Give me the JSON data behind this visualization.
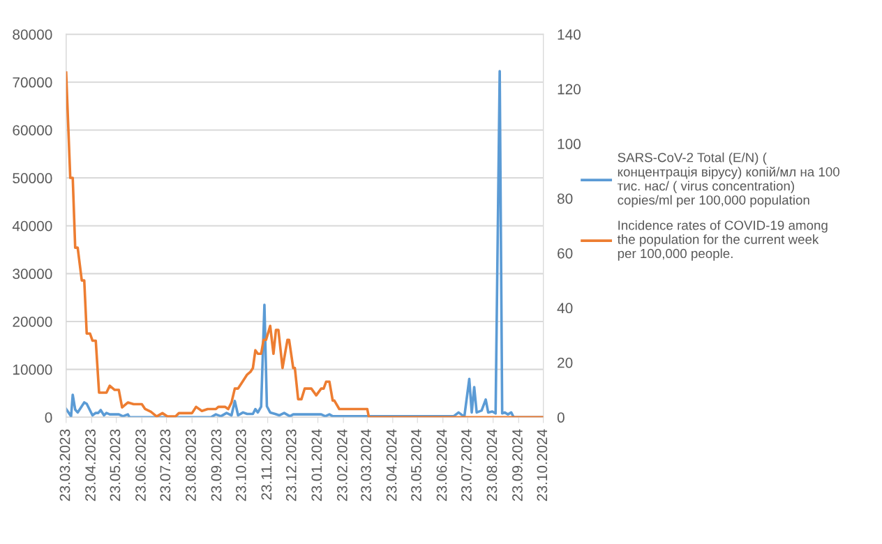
{
  "chart_data": {
    "type": "line",
    "xlim": [
      "2023-03-23",
      "2024-10-23"
    ],
    "xticks": [
      {
        "value": "2023-03-23",
        "label": "23.03.2023"
      },
      {
        "value": "2023-04-23",
        "label": "23.04.2023"
      },
      {
        "value": "2023-05-23",
        "label": "23.05.2023"
      },
      {
        "value": "2023-06-23",
        "label": "23.06.2023"
      },
      {
        "value": "2023-07-23",
        "label": "23.07.2023"
      },
      {
        "value": "2023-08-23",
        "label": "23.08.2023"
      },
      {
        "value": "2023-09-23",
        "label": "23.09.2023"
      },
      {
        "value": "2023-10-23",
        "label": "23.10.2023"
      },
      {
        "value": "2023-11-23",
        "label": "23.11.2023"
      },
      {
        "value": "2023-12-23",
        "label": "23.12.2023"
      },
      {
        "value": "2024-01-23",
        "label": "23.01.2024"
      },
      {
        "value": "2024-02-23",
        "label": "23.02.2024"
      },
      {
        "value": "2024-03-23",
        "label": "23.03.2024"
      },
      {
        "value": "2024-04-23",
        "label": "23.04.2024"
      },
      {
        "value": "2024-05-23",
        "label": "23.05.2024"
      },
      {
        "value": "2024-06-23",
        "label": "23.06.2024"
      },
      {
        "value": "2024-07-23",
        "label": "23.07.2024"
      },
      {
        "value": "2024-08-23",
        "label": "23.08.2024"
      },
      {
        "value": "2024-09-23",
        "label": "23.09.2024"
      },
      {
        "value": "2024-10-23",
        "label": "23.10.2024"
      }
    ],
    "ylim": [
      0,
      80000
    ],
    "yticks": [
      0,
      10000,
      20000,
      30000,
      40000,
      50000,
      60000,
      70000,
      80000
    ],
    "y2lim": [
      0,
      140
    ],
    "y2ticks": [
      0,
      20,
      40,
      60,
      80,
      100,
      120,
      140
    ],
    "grid": "y",
    "legend": "right",
    "marker": "none",
    "line_style": "solid",
    "series": [
      {
        "name": "SARS-CoV-2 Total (E/N) ( концентрація вірусу) копій/мл на 100 тис. нас/ ( virus concentration) copies/ml per 100,000 population",
        "color": "#5b9bd5",
        "x": [
          "2023-03-23",
          "2023-03-29",
          "2023-03-31",
          "2023-04-03",
          "2023-04-06",
          "2023-04-14",
          "2023-04-17",
          "2023-04-24",
          "2023-04-28",
          "2023-05-01",
          "2023-05-04",
          "2023-05-08",
          "2023-05-11",
          "2023-05-15",
          "2023-05-26",
          "2023-05-31",
          "2023-06-06",
          "2023-06-08",
          "2023-09-15",
          "2023-09-21",
          "2023-09-27",
          "2023-10-04",
          "2023-10-10",
          "2023-10-14",
          "2023-10-18",
          "2023-10-24",
          "2023-10-29",
          "2023-11-05",
          "2023-11-08",
          "2023-11-11",
          "2023-11-15",
          "2023-11-19",
          "2023-11-22",
          "2023-11-26",
          "2023-12-02",
          "2023-12-07",
          "2023-12-13",
          "2023-12-20",
          "2023-12-24",
          "2024-01-27",
          "2024-02-01",
          "2024-02-06",
          "2024-02-10",
          "2024-07-06",
          "2024-07-12",
          "2024-07-19",
          "2024-07-25",
          "2024-07-28",
          "2024-07-31",
          "2024-08-03",
          "2024-08-09",
          "2024-08-14",
          "2024-08-17",
          "2024-08-22",
          "2024-08-26",
          "2024-08-31",
          "2024-09-03",
          "2024-09-06",
          "2024-09-10",
          "2024-09-14",
          "2024-09-17",
          "2024-10-23"
        ],
        "values": [
          1700,
          200,
          4700,
          1600,
          1000,
          3100,
          2800,
          400,
          900,
          900,
          1500,
          400,
          900,
          600,
          600,
          200,
          600,
          0,
          0,
          600,
          200,
          900,
          400,
          3400,
          400,
          1000,
          700,
          700,
          1700,
          1000,
          2200,
          23500,
          2300,
          1000,
          700,
          400,
          900,
          200,
          600,
          600,
          200,
          600,
          200,
          200,
          1000,
          100,
          8000,
          1000,
          6300,
          1000,
          1400,
          3700,
          1000,
          1200,
          800,
          72300,
          800,
          1000,
          600,
          1000,
          0,
          0
        ]
      },
      {
        "name": "Incidence rates of COVID-19 among the population for the current week per 100,000 people.",
        "color": "#ed7d31",
        "axis": "y2",
        "x": [
          "2023-03-23",
          "2023-03-28",
          "2023-03-31",
          "2023-04-03",
          "2023-04-06",
          "2023-04-11",
          "2023-04-14",
          "2023-04-17",
          "2023-04-21",
          "2023-04-24",
          "2023-04-28",
          "2023-05-02",
          "2023-05-11",
          "2023-05-15",
          "2023-05-21",
          "2023-05-26",
          "2023-05-30",
          "2023-06-06",
          "2023-06-13",
          "2023-06-23",
          "2023-06-27",
          "2023-07-04",
          "2023-07-11",
          "2023-07-18",
          "2023-07-24",
          "2023-08-03",
          "2023-08-07",
          "2023-08-23",
          "2023-08-28",
          "2023-09-04",
          "2023-09-11",
          "2023-09-21",
          "2023-09-24",
          "2023-10-02",
          "2023-10-06",
          "2023-10-10",
          "2023-10-14",
          "2023-10-18",
          "2023-10-23",
          "2023-10-29",
          "2023-11-02",
          "2023-11-05",
          "2023-11-08",
          "2023-11-11",
          "2023-11-15",
          "2023-11-18",
          "2023-11-21",
          "2023-11-26",
          "2023-11-30",
          "2023-12-03",
          "2023-12-06",
          "2023-12-11",
          "2023-12-17",
          "2023-12-19",
          "2023-12-24",
          "2023-12-26",
          "2023-12-30",
          "2024-01-03",
          "2024-01-07",
          "2024-01-15",
          "2024-01-21",
          "2024-01-27",
          "2024-01-30",
          "2024-02-02",
          "2024-02-06",
          "2024-02-10",
          "2024-02-12",
          "2024-02-18",
          "2024-03-23",
          "2024-03-25",
          "2024-10-23"
        ],
        "values": [
          126,
          87.5,
          87.5,
          62,
          62,
          50,
          50,
          30.6,
          30.6,
          28,
          28,
          9,
          9,
          11.5,
          10,
          10,
          3.6,
          5.4,
          4.8,
          4.8,
          3,
          2,
          0.3,
          1.5,
          0.3,
          0.3,
          1.5,
          1.5,
          3.8,
          2.3,
          3,
          3,
          3.8,
          3.8,
          3,
          5.4,
          10.5,
          10.5,
          12.8,
          15.6,
          16.6,
          18,
          24.5,
          23.2,
          23.2,
          28.3,
          28.3,
          33.4,
          23.2,
          31.9,
          31.9,
          18,
          28.3,
          28.3,
          18,
          18,
          6.6,
          6.6,
          10.5,
          10.5,
          8,
          10.5,
          10.5,
          13,
          13,
          6.1,
          6.1,
          3,
          3,
          0,
          0
        ]
      }
    ]
  }
}
